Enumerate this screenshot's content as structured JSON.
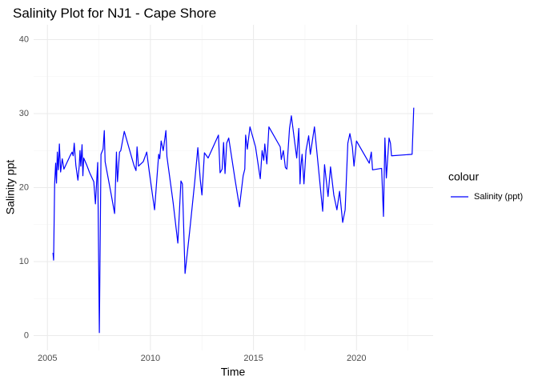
{
  "chart_data": {
    "type": "line",
    "title": "Salinity Plot for NJ1 - Cape Shore",
    "x_label": "Time",
    "y_label": "Salinity ppt",
    "legend_title": "colour",
    "legend": "right",
    "x": [
      2005.27,
      2005.3,
      2005.35,
      2005.4,
      2005.44,
      2005.48,
      2005.53,
      2005.58,
      2005.64,
      2005.72,
      2005.8,
      2006.1,
      2006.2,
      2006.25,
      2006.3,
      2006.38,
      2006.48,
      2006.54,
      2006.58,
      2006.62,
      2006.68,
      2006.72,
      2006.76,
      2006.9,
      2007.05,
      2007.25,
      2007.33,
      2007.44,
      2007.52,
      2007.6,
      2007.7,
      2007.76,
      2007.8,
      2008.1,
      2008.26,
      2008.35,
      2008.4,
      2008.5,
      2008.56,
      2008.73,
      2009.2,
      2009.3,
      2009.35,
      2009.42,
      2009.65,
      2009.82,
      2009.95,
      2010.2,
      2010.4,
      2010.45,
      2010.52,
      2010.62,
      2010.75,
      2010.8,
      2011.1,
      2011.33,
      2011.48,
      2011.55,
      2011.68,
      2011.9,
      2012.15,
      2012.3,
      2012.42,
      2012.5,
      2012.62,
      2012.8,
      2013.3,
      2013.38,
      2013.48,
      2013.55,
      2013.62,
      2013.7,
      2013.8,
      2014.1,
      2014.32,
      2014.5,
      2014.58,
      2014.62,
      2014.7,
      2014.83,
      2015.1,
      2015.33,
      2015.42,
      2015.5,
      2015.55,
      2015.65,
      2015.75,
      2016.3,
      2016.35,
      2016.45,
      2016.55,
      2016.62,
      2016.75,
      2016.84,
      2017.1,
      2017.2,
      2017.26,
      2017.3,
      2017.36,
      2017.45,
      2017.55,
      2017.68,
      2017.76,
      2017.96,
      2018.36,
      2018.45,
      2018.62,
      2018.74,
      2018.9,
      2019.05,
      2019.18,
      2019.33,
      2019.45,
      2019.58,
      2019.68,
      2019.8,
      2019.88,
      2020.0,
      2020.62,
      2020.72,
      2020.78,
      2021.22,
      2021.31,
      2021.38,
      2021.45,
      2021.58,
      2021.65,
      2021.7,
      2022.7,
      2022.78
    ],
    "series": [
      {
        "name": "Salinity (ppt)",
        "color": "#0000ff",
        "values": [
          11.2,
          10.2,
          20.5,
          23.3,
          20.6,
          24.8,
          22.4,
          25.9,
          22.1,
          23.9,
          22.5,
          24.3,
          24.8,
          24.3,
          26.0,
          23.0,
          21.0,
          22.8,
          25.0,
          22.9,
          25.8,
          21.6,
          24.0,
          23.1,
          22.0,
          20.8,
          17.8,
          23.4,
          0.4,
          24.5,
          25.2,
          27.7,
          23.5,
          19.0,
          16.5,
          24.8,
          20.8,
          24.8,
          25.0,
          27.6,
          23.0,
          22.3,
          25.5,
          22.9,
          23.5,
          24.8,
          22.0,
          17.0,
          24.5,
          23.9,
          26.3,
          25.0,
          27.7,
          24.2,
          18.0,
          12.5,
          20.9,
          20.5,
          8.4,
          14.0,
          20.8,
          25.4,
          21.0,
          19.0,
          24.7,
          24.0,
          27.1,
          22.0,
          22.5,
          26.1,
          21.9,
          26.0,
          26.7,
          21.2,
          17.4,
          21.6,
          22.5,
          27.1,
          25.2,
          28.2,
          25.5,
          21.2,
          25.0,
          23.7,
          25.9,
          23.2,
          28.2,
          25.5,
          23.8,
          25.0,
          22.7,
          22.5,
          28.0,
          29.7,
          24.0,
          28.0,
          20.5,
          22.8,
          24.5,
          20.5,
          25.0,
          27.0,
          24.5,
          28.2,
          16.8,
          23.1,
          18.8,
          22.8,
          19.0,
          17.0,
          19.5,
          15.3,
          17.0,
          26.0,
          27.3,
          25.5,
          22.9,
          26.3,
          23.3,
          24.8,
          22.4,
          22.6,
          16.1,
          26.7,
          21.3,
          26.7,
          26.0,
          24.3,
          24.5,
          30.8
        ]
      }
    ],
    "xlim": [
      2004.33,
      2023.72
    ],
    "ylim": [
      -2,
      42
    ],
    "xticks": [
      2005,
      2010,
      2015,
      2020
    ],
    "yticks": [
      0,
      10,
      20,
      30,
      40
    ],
    "x_minor": [
      2007.5,
      2012.5,
      2017.5,
      2022.5
    ],
    "y_minor": [
      5,
      15,
      25,
      35
    ],
    "grid": true
  }
}
